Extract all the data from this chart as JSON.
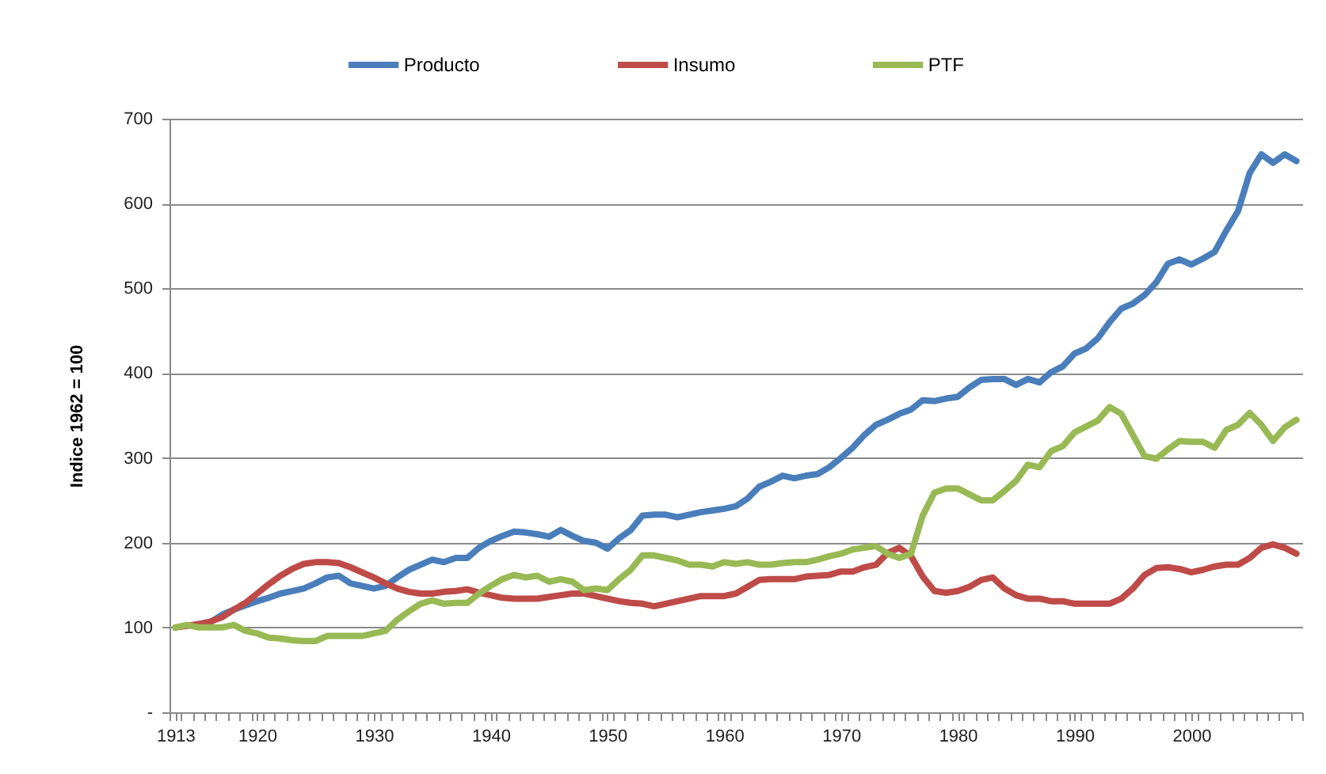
{
  "chart_data": {
    "type": "line",
    "ylabel": "Indice 1962 = 100",
    "x": [
      1913,
      1914,
      1915,
      1916,
      1917,
      1918,
      1919,
      1920,
      1921,
      1922,
      1923,
      1924,
      1925,
      1926,
      1927,
      1928,
      1929,
      1930,
      1931,
      1932,
      1933,
      1934,
      1935,
      1936,
      1937,
      1938,
      1939,
      1940,
      1941,
      1942,
      1943,
      1944,
      1945,
      1946,
      1947,
      1948,
      1949,
      1950,
      1951,
      1952,
      1953,
      1954,
      1955,
      1956,
      1957,
      1958,
      1959,
      1960,
      1961,
      1962,
      1963,
      1964,
      1965,
      1966,
      1967,
      1968,
      1969,
      1970,
      1971,
      1972,
      1973,
      1974,
      1975,
      1976,
      1977,
      1978,
      1979,
      1980,
      1981,
      1982,
      1983,
      1984,
      1985,
      1986,
      1987,
      1988,
      1989,
      1990,
      1991,
      1992,
      1993,
      1994,
      1995,
      1996,
      1997,
      1998,
      1999,
      2000,
      2001,
      2002,
      2003,
      2004,
      2005,
      2006,
      2007,
      2008,
      2009
    ],
    "series": [
      {
        "name": "Producto",
        "color": "#4a7ebb",
        "values": [
          null,
          null,
          104,
          106,
          115,
          121,
          126,
          131,
          135,
          140,
          143,
          146,
          152,
          159,
          161,
          152,
          149,
          146,
          149,
          159,
          168,
          174,
          180,
          177,
          182,
          182,
          194,
          202,
          208,
          213,
          212,
          210,
          207,
          215,
          208,
          202,
          200,
          193,
          205,
          215,
          232,
          233,
          233,
          230,
          233,
          236,
          238,
          240,
          243,
          252,
          266,
          272,
          279,
          276,
          279,
          281,
          289,
          300,
          312,
          327,
          339,
          345,
          352,
          357,
          368,
          367,
          370,
          372,
          383,
          392,
          393,
          393,
          386,
          393,
          389,
          401,
          408,
          423,
          429,
          441,
          460,
          476,
          482,
          492,
          507,
          529,
          534,
          528,
          535,
          543,
          568,
          591,
          636,
          658,
          648,
          658,
          650
        ]
      },
      {
        "name": "Insumo",
        "color": "#be4b48",
        "values": [
          100,
          102,
          104,
          107,
          112,
          121,
          129,
          140,
          151,
          161,
          169,
          175,
          177,
          177,
          176,
          171,
          165,
          159,
          152,
          146,
          142,
          140,
          140,
          142,
          143,
          145,
          141,
          138,
          135,
          134,
          134,
          134,
          136,
          138,
          140,
          140,
          137,
          134,
          131,
          129,
          128,
          125,
          128,
          131,
          134,
          137,
          137,
          137,
          140,
          148,
          156,
          157,
          157,
          157,
          160,
          161,
          162,
          166,
          166,
          171,
          174,
          188,
          194,
          184,
          160,
          143,
          141,
          143,
          148,
          156,
          159,
          146,
          138,
          134,
          134,
          131,
          131,
          128,
          128,
          128,
          128,
          134,
          146,
          162,
          170,
          171,
          169,
          165,
          168,
          172,
          174,
          174,
          182,
          194,
          198,
          194,
          187
        ]
      },
      {
        "name": "PTF",
        "color": "#98b954",
        "values": [
          100,
          103,
          100,
          100,
          100,
          103,
          96,
          93,
          88,
          87,
          85,
          84,
          84,
          90,
          90,
          90,
          90,
          93,
          96,
          109,
          119,
          128,
          132,
          128,
          129,
          129,
          140,
          149,
          157,
          162,
          159,
          161,
          154,
          157,
          154,
          144,
          146,
          144,
          157,
          168,
          185,
          185,
          182,
          179,
          174,
          174,
          172,
          177,
          175,
          177,
          174,
          174,
          176,
          177,
          177,
          180,
          184,
          187,
          192,
          194,
          196,
          187,
          182,
          187,
          232,
          259,
          264,
          264,
          257,
          250,
          250,
          261,
          273,
          292,
          289,
          308,
          314,
          330,
          337,
          344,
          360,
          352,
          327,
          302,
          299,
          310,
          320,
          319,
          319,
          312,
          333,
          339,
          353,
          339,
          320,
          336,
          345
        ]
      }
    ],
    "xlim": [
      1912.5,
      2009.5
    ],
    "xticks": [
      1913,
      1920,
      1930,
      1940,
      1950,
      1960,
      1970,
      1980,
      1990,
      2000,
      {
        "value": 1912.5,
        "label": null
      },
      {
        "value": 1913.5,
        "label": null
      },
      {
        "value": 1914.5,
        "label": null
      },
      {
        "value": 1915.5,
        "label": null
      },
      {
        "value": 1916.5,
        "label": null
      },
      {
        "value": 1917.5,
        "label": null
      },
      {
        "value": 1918.5,
        "label": null
      },
      {
        "value": 1919.5,
        "label": null
      },
      {
        "value": 1920.5,
        "label": null
      },
      {
        "value": 1921.5,
        "label": null
      },
      {
        "value": 1922.5,
        "label": null
      },
      {
        "value": 1923.5,
        "label": null
      },
      {
        "value": 1924.5,
        "label": null
      },
      {
        "value": 1925.5,
        "label": null
      },
      {
        "value": 1926.5,
        "label": null
      },
      {
        "value": 1927.5,
        "label": null
      },
      {
        "value": 1928.5,
        "label": null
      },
      {
        "value": 1929.5,
        "label": null
      },
      {
        "value": 1930.5,
        "label": null
      },
      {
        "value": 1931.5,
        "label": null
      },
      {
        "value": 1932.5,
        "label": null
      },
      {
        "value": 1933.5,
        "label": null
      },
      {
        "value": 1934.5,
        "label": null
      },
      {
        "value": 1935.5,
        "label": null
      },
      {
        "value": 1936.5,
        "label": null
      },
      {
        "value": 1937.5,
        "label": null
      },
      {
        "value": 1938.5,
        "label": null
      },
      {
        "value": 1939.5,
        "label": null
      },
      {
        "value": 1940.5,
        "label": null
      },
      {
        "value": 1941.5,
        "label": null
      },
      {
        "value": 1942.5,
        "label": null
      },
      {
        "value": 1943.5,
        "label": null
      },
      {
        "value": 1944.5,
        "label": null
      },
      {
        "value": 1945.5,
        "label": null
      },
      {
        "value": 1946.5,
        "label": null
      },
      {
        "value": 1947.5,
        "label": null
      },
      {
        "value": 1948.5,
        "label": null
      },
      {
        "value": 1949.5,
        "label": null
      },
      {
        "value": 1950.5,
        "label": null
      },
      {
        "value": 1951.5,
        "label": null
      },
      {
        "value": 1952.5,
        "label": null
      },
      {
        "value": 1953.5,
        "label": null
      },
      {
        "value": 1954.5,
        "label": null
      },
      {
        "value": 1955.5,
        "label": null
      },
      {
        "value": 1956.5,
        "label": null
      },
      {
        "value": 1957.5,
        "label": null
      },
      {
        "value": 1958.5,
        "label": null
      },
      {
        "value": 1959.5,
        "label": null
      },
      {
        "value": 1960.5,
        "label": null
      },
      {
        "value": 1961.5,
        "label": null
      },
      {
        "value": 1962.5,
        "label": null
      },
      {
        "value": 1963.5,
        "label": null
      },
      {
        "value": 1964.5,
        "label": null
      },
      {
        "value": 1965.5,
        "label": null
      },
      {
        "value": 1966.5,
        "label": null
      },
      {
        "value": 1967.5,
        "label": null
      },
      {
        "value": 1968.5,
        "label": null
      },
      {
        "value": 1969.5,
        "label": null
      },
      {
        "value": 1970.5,
        "label": null
      },
      {
        "value": 1971.5,
        "label": null
      },
      {
        "value": 1972.5,
        "label": null
      },
      {
        "value": 1973.5,
        "label": null
      },
      {
        "value": 1974.5,
        "label": null
      },
      {
        "value": 1975.5,
        "label": null
      },
      {
        "value": 1976.5,
        "label": null
      },
      {
        "value": 1977.5,
        "label": null
      },
      {
        "value": 1978.5,
        "label": null
      },
      {
        "value": 1979.5,
        "label": null
      },
      {
        "value": 1980.5,
        "label": null
      },
      {
        "value": 1981.5,
        "label": null
      },
      {
        "value": 1982.5,
        "label": null
      },
      {
        "value": 1983.5,
        "label": null
      },
      {
        "value": 1984.5,
        "label": null
      },
      {
        "value": 1985.5,
        "label": null
      },
      {
        "value": 1986.5,
        "label": null
      },
      {
        "value": 1987.5,
        "label": null
      },
      {
        "value": 1988.5,
        "label": null
      },
      {
        "value": 1989.5,
        "label": null
      },
      {
        "value": 1990.5,
        "label": null
      },
      {
        "value": 1991.5,
        "label": null
      },
      {
        "value": 1992.5,
        "label": null
      },
      {
        "value": 1993.5,
        "label": null
      },
      {
        "value": 1994.5,
        "label": null
      },
      {
        "value": 1995.5,
        "label": null
      },
      {
        "value": 1996.5,
        "label": null
      },
      {
        "value": 1997.5,
        "label": null
      },
      {
        "value": 1998.5,
        "label": null
      },
      {
        "value": 1999.5,
        "label": null
      },
      {
        "value": 2000.5,
        "label": null
      },
      {
        "value": 2001.5,
        "label": null
      },
      {
        "value": 2002.5,
        "label": null
      },
      {
        "value": 2003.5,
        "label": null
      },
      {
        "value": 2004.5,
        "label": null
      },
      {
        "value": 2005.5,
        "label": null
      },
      {
        "value": 2006.5,
        "label": null
      },
      {
        "value": 2007.5,
        "label": null
      },
      {
        "value": 2008.5,
        "label": null
      },
      {
        "value": 2009.5,
        "label": null
      }
    ],
    "ylim": [
      0,
      700
    ],
    "yticks": [
      {
        "value": 0,
        "label": "-"
      },
      100,
      200,
      300,
      400,
      500,
      600,
      700
    ],
    "grid": "y",
    "legend": "top",
    "line_style": "solid"
  }
}
